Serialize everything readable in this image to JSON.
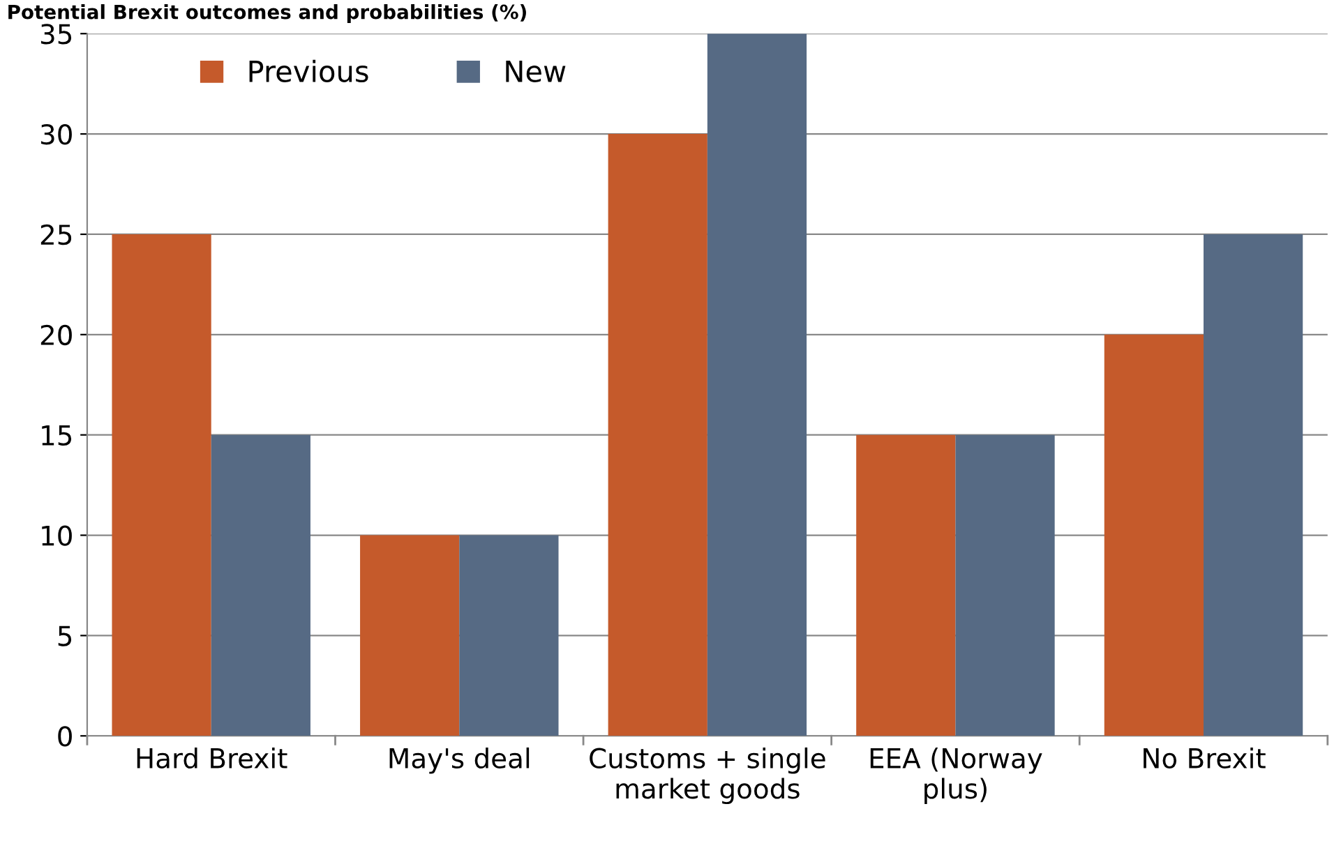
{
  "chart_data": {
    "type": "bar",
    "title": "Potential Brexit outcomes and probabilities (%)",
    "categories": [
      "Hard Brexit",
      "May's deal",
      "Customs + single market goods",
      "EEA (Norway plus)",
      "No Brexit"
    ],
    "series": [
      {
        "name": "Previous",
        "color": "#c55a2b",
        "values": [
          25,
          10,
          30,
          15,
          20
        ]
      },
      {
        "name": "New",
        "color": "#566a84",
        "values": [
          15,
          10,
          35,
          15,
          25
        ]
      }
    ],
    "ylim": [
      0,
      35
    ],
    "yticks": [
      0,
      5,
      10,
      15,
      20,
      25,
      30,
      35
    ],
    "grid": "y",
    "legend": "top left"
  }
}
